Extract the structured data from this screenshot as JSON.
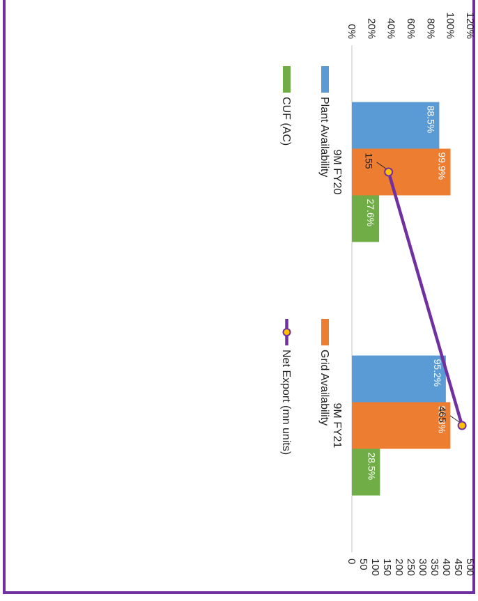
{
  "chart_data": {
    "type": "bar",
    "categories": [
      "9M FY20",
      "9M FY21"
    ],
    "series": [
      {
        "name": "Plant Availability",
        "type": "bar",
        "axis": "left",
        "color": "#5B9BD5",
        "values": [
          88.5,
          95.2
        ],
        "labels": [
          "88.5%",
          "95.2%"
        ]
      },
      {
        "name": "Grid Availability",
        "type": "bar",
        "axis": "left",
        "color": "#ED7D31",
        "values": [
          99.9,
          99.8
        ],
        "labels": [
          "99.9%",
          "99.8%"
        ]
      },
      {
        "name": "CUF (AC)",
        "type": "bar",
        "axis": "left",
        "color": "#70AD47",
        "values": [
          27.6,
          28.5
        ],
        "labels": [
          "27.6%",
          "28.5%"
        ]
      },
      {
        "name": "Net Export (mn units)",
        "type": "line",
        "axis": "right",
        "color": "#7030A0",
        "marker_color": "#FFC000",
        "values": [
          155,
          465
        ],
        "labels": [
          "155",
          "465"
        ]
      }
    ],
    "left_axis": {
      "range": [
        0,
        120
      ],
      "ticks": [
        "0%",
        "20%",
        "40%",
        "60%",
        "80%",
        "100%",
        "120%"
      ]
    },
    "right_axis": {
      "range": [
        0,
        500
      ],
      "ticks": [
        "0",
        "50",
        "100",
        "150",
        "200",
        "250",
        "300",
        "350",
        "400",
        "450",
        "500"
      ]
    },
    "legend": [
      "Plant Availability",
      "Grid Availability",
      "CUF (AC)",
      "Net Export (mn units)"
    ],
    "legend_position": "bottom",
    "orientation": "rotated 90 degrees clockwise",
    "grid": false,
    "border_color": "#7030A0"
  }
}
